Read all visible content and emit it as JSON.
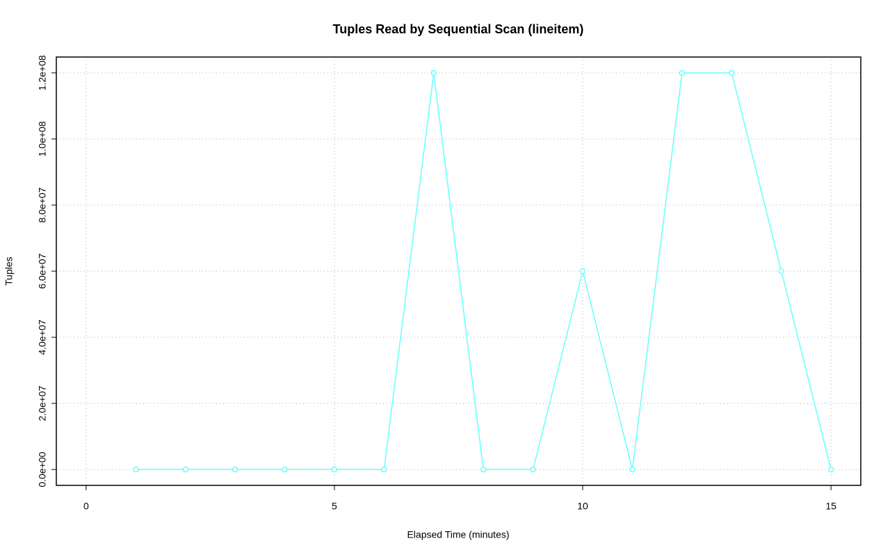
{
  "chart_data": {
    "type": "line",
    "title": "Tuples Read by Sequential Scan (lineitem)",
    "x_label": "Elapsed Time (minutes)",
    "y_label": "Tuples",
    "x": [
      1,
      2,
      3,
      4,
      5,
      6,
      7,
      8,
      9,
      10,
      11,
      12,
      13,
      14,
      15
    ],
    "series": [
      {
        "name": "lineitem",
        "color": "#66ffff",
        "values": [
          0,
          0,
          0,
          0,
          0,
          0,
          120000000,
          0,
          0,
          60000000,
          0,
          120000000,
          120000000,
          60000000,
          0
        ]
      }
    ],
    "xlim": [
      -0.6,
      15.6
    ],
    "ylim": [
      -4800000,
      124800000
    ],
    "xticks": [
      0,
      5,
      10,
      15
    ],
    "yticks": [
      {
        "value": 0,
        "label": "0.0e+00"
      },
      {
        "value": 20000000,
        "label": "2.0e+07"
      },
      {
        "value": 40000000,
        "label": "4.0e+07"
      },
      {
        "value": 60000000,
        "label": "6.0e+07"
      },
      {
        "value": 80000000,
        "label": "8.0e+07"
      },
      {
        "value": 100000000,
        "label": "1.0e+08"
      },
      {
        "value": 120000000,
        "label": "1.2e+08"
      }
    ],
    "grid": true
  }
}
